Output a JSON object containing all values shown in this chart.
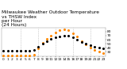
{
  "title": "Milwaukee Weather Outdoor Temperature\nvs THSW Index\nper Hour\n(24 Hours)",
  "background_color": "#ffffff",
  "grid_color": "#aaaaaa",
  "hours": [
    0,
    1,
    2,
    3,
    4,
    5,
    6,
    7,
    8,
    9,
    10,
    11,
    12,
    13,
    14,
    15,
    16,
    17,
    18,
    19,
    20,
    21,
    22,
    23
  ],
  "temp": [
    33,
    33,
    33,
    33,
    33,
    33,
    33,
    35,
    42,
    50,
    57,
    62,
    66,
    68,
    70,
    69,
    66,
    61,
    55,
    50,
    46,
    43,
    41,
    39
  ],
  "thsw": [
    20,
    20,
    20,
    20,
    20,
    20,
    20,
    22,
    38,
    52,
    62,
    70,
    78,
    83,
    85,
    83,
    76,
    67,
    56,
    48,
    40,
    35,
    30,
    26
  ],
  "temp_color": "#000000",
  "thsw_color": "#ff8800",
  "ylim": [
    18,
    90
  ],
  "ytick_values": [
    30,
    40,
    50,
    60,
    70,
    80
  ],
  "ytick_labels": [
    "30",
    "40",
    "50",
    "60",
    "70",
    "80"
  ],
  "title_fontsize": 4.2,
  "tick_fontsize": 3.2,
  "marker_size": 1.2,
  "dashed_grid_hours": [
    4,
    8,
    12,
    16,
    20
  ],
  "figsize": [
    1.6,
    0.87
  ],
  "dpi": 100
}
